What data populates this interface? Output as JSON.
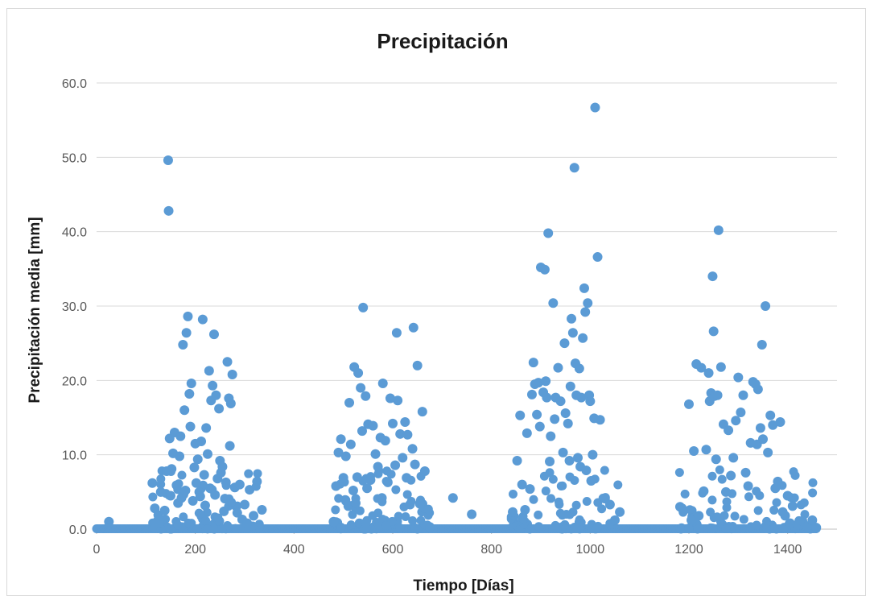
{
  "chart_data": {
    "type": "scatter",
    "title": "Precipitación",
    "xlabel": "Tiempo [Días]",
    "ylabel": "Precipitación  media [mm]",
    "xlim": [
      0,
      1500
    ],
    "ylim": [
      0,
      60
    ],
    "x_ticks": [
      0,
      200,
      400,
      600,
      800,
      1000,
      1200,
      1400
    ],
    "y_ticks": [
      0,
      10,
      20,
      30,
      40,
      50,
      60
    ],
    "x_tick_labels": [
      "0",
      "200",
      "400",
      "600",
      "800",
      "1000",
      "1200",
      "1400"
    ],
    "y_tick_labels": [
      "0.0",
      "10.0",
      "20.0",
      "30.0",
      "40.0",
      "50.0",
      "60.0"
    ],
    "grid": "horizontal",
    "legend": "none",
    "series": [
      {
        "color": "#5b9bd5",
        "x": [
          25,
          113,
          118,
          125,
          130,
          138,
          142,
          145,
          146,
          148,
          150,
          152,
          155,
          158,
          162,
          165,
          168,
          170,
          172,
          175,
          178,
          180,
          182,
          185,
          188,
          190,
          192,
          195,
          198,
          200,
          202,
          205,
          208,
          210,
          212,
          215,
          218,
          220,
          222,
          225,
          228,
          230,
          232,
          235,
          238,
          240,
          242,
          245,
          248,
          250,
          252,
          255,
          258,
          260,
          262,
          265,
          268,
          270,
          272,
          275,
          280,
          285,
          290,
          295,
          300,
          305,
          310,
          318,
          325,
          335,
          480,
          485,
          490,
          495,
          500,
          505,
          510,
          512,
          515,
          520,
          522,
          525,
          528,
          530,
          535,
          538,
          540,
          545,
          548,
          550,
          555,
          560,
          565,
          570,
          575,
          578,
          580,
          585,
          590,
          595,
          600,
          605,
          608,
          610,
          615,
          620,
          625,
          628,
          630,
          635,
          640,
          642,
          645,
          650,
          655,
          660,
          665,
          670,
          675,
          722,
          760,
          843,
          852,
          858,
          862,
          868,
          872,
          878,
          882,
          885,
          888,
          892,
          895,
          898,
          900,
          905,
          908,
          910,
          912,
          915,
          918,
          920,
          925,
          928,
          930,
          935,
          940,
          945,
          948,
          950,
          955,
          958,
          960,
          962,
          965,
          968,
          970,
          972,
          975,
          978,
          980,
          982,
          985,
          988,
          990,
          992,
          995,
          998,
          1000,
          1002,
          1005,
          1008,
          1010,
          1015,
          1020,
          1030,
          1040,
          1050,
          1060,
          1182,
          1186,
          1200,
          1205,
          1210,
          1215,
          1220,
          1225,
          1230,
          1235,
          1240,
          1242,
          1245,
          1248,
          1250,
          1252,
          1255,
          1258,
          1260,
          1265,
          1270,
          1275,
          1280,
          1285,
          1290,
          1295,
          1300,
          1305,
          1310,
          1315,
          1320,
          1325,
          1330,
          1335,
          1338,
          1340,
          1345,
          1348,
          1350,
          1355,
          1360,
          1365,
          1370,
          1375,
          1380,
          1385,
          1390,
          1395,
          1400,
          1405,
          1410,
          1420,
          1430,
          1440,
          1450,
          1458
        ],
        "y": [
          1.0,
          6.2,
          2.8,
          1.9,
          5.0,
          2.5,
          7.8,
          49.6,
          42.8,
          12.2,
          4.5,
          8.1,
          10.2,
          13.0,
          5.9,
          3.5,
          9.8,
          12.5,
          4.2,
          24.8,
          16.0,
          5.2,
          26.4,
          28.6,
          18.2,
          13.8,
          19.6,
          3.8,
          8.3,
          11.5,
          6.2,
          9.4,
          5.0,
          4.4,
          11.8,
          28.2,
          7.3,
          3.2,
          13.6,
          10.1,
          21.3,
          5.5,
          17.3,
          19.3,
          26.2,
          4.6,
          18.0,
          6.8,
          16.2,
          9.2,
          7.6,
          8.4,
          2.4,
          4.1,
          6.3,
          22.5,
          17.6,
          11.2,
          16.9,
          20.8,
          5.6,
          2.2,
          6.0,
          1.3,
          3.3,
          0.8,
          5.3,
          1.8,
          6.4,
          2.6,
          1.0,
          5.8,
          10.3,
          12.1,
          6.9,
          9.8,
          3.1,
          17.0,
          11.4,
          5.2,
          21.8,
          3.5,
          7.0,
          21.0,
          19.0,
          13.2,
          29.8,
          17.9,
          5.5,
          14.1,
          6.6,
          13.9,
          10.1,
          8.4,
          12.3,
          4.2,
          19.6,
          11.9,
          6.3,
          17.6,
          14.2,
          8.6,
          26.4,
          17.3,
          12.8,
          9.6,
          14.4,
          6.9,
          12.7,
          3.3,
          10.8,
          27.1,
          8.7,
          22.0,
          3.4,
          15.8,
          7.8,
          0.5,
          0.3,
          4.2,
          2.0,
          2.3,
          9.2,
          15.3,
          6.0,
          2.6,
          12.9,
          5.4,
          18.1,
          22.4,
          19.5,
          15.4,
          19.7,
          13.8,
          35.2,
          18.4,
          34.9,
          19.9,
          17.7,
          39.8,
          9.1,
          12.5,
          30.4,
          14.8,
          17.7,
          21.7,
          17.2,
          10.3,
          25.0,
          15.6,
          14.2,
          9.2,
          19.2,
          28.3,
          26.4,
          48.6,
          22.3,
          18.0,
          9.6,
          21.6,
          8.4,
          17.7,
          25.7,
          32.4,
          29.2,
          7.9,
          30.4,
          18.0,
          17.2,
          6.5,
          10.0,
          14.9,
          56.7,
          36.6,
          14.7,
          4.1,
          3.3,
          1.2,
          2.3,
          3.0,
          2.8,
          16.8,
          1.2,
          10.5,
          22.2,
          1.8,
          21.7,
          5.1,
          10.7,
          21.0,
          17.2,
          18.3,
          34.0,
          26.6,
          17.9,
          9.4,
          18.0,
          40.2,
          21.8,
          14.1,
          5.0,
          13.3,
          7.2,
          9.6,
          14.6,
          20.4,
          15.7,
          18.0,
          7.6,
          5.8,
          11.6,
          19.8,
          19.5,
          11.4,
          18.8,
          13.6,
          24.8,
          12.1,
          30.0,
          10.3,
          15.3,
          14.0,
          5.5,
          6.4,
          14.4,
          2.3,
          1.8,
          4.5,
          0.8,
          3.1,
          0.6,
          1.1,
          0.4,
          1.2,
          0.2
        ]
      }
    ]
  }
}
